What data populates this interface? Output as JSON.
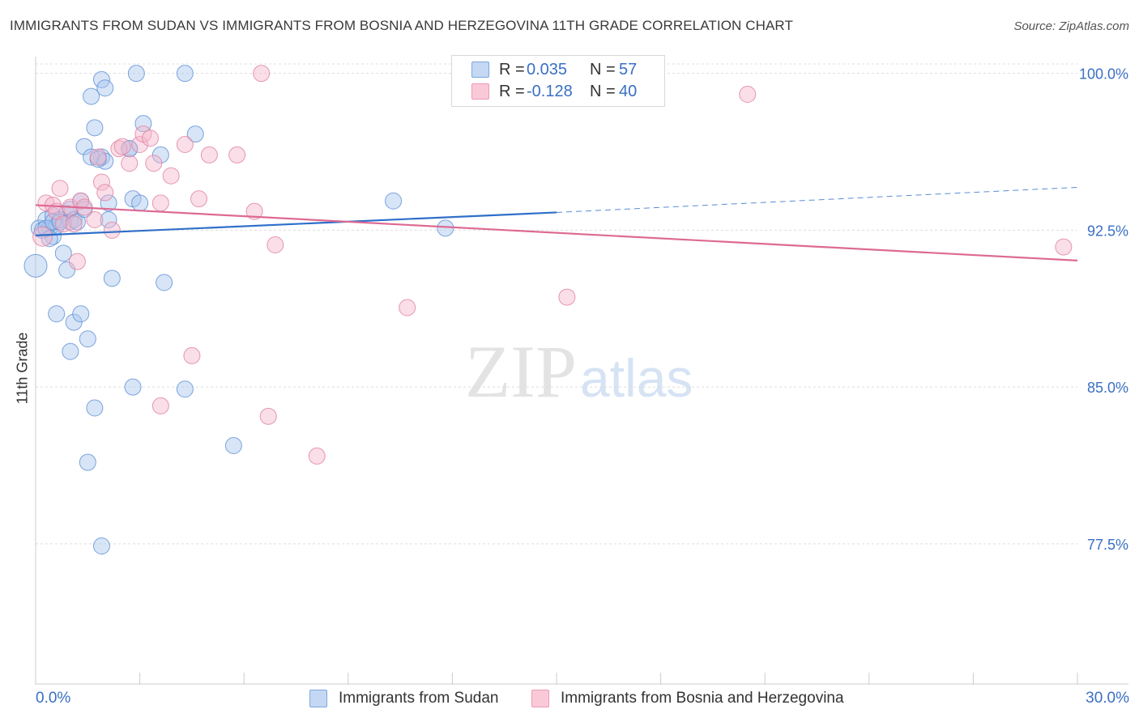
{
  "title": "IMMIGRANTS FROM SUDAN VS IMMIGRANTS FROM BOSNIA AND HERZEGOVINA 11TH GRADE CORRELATION CHART",
  "source": "Source: ZipAtlas.com",
  "watermark": {
    "zip": "ZIP",
    "atlas": "atlas"
  },
  "legend": {
    "r_label": "R =",
    "n_label": "N =",
    "rows": [
      {
        "r": "0.035",
        "n": "57",
        "color": "#a9c6ee"
      },
      {
        "r": "-0.128",
        "n": "40",
        "color": "#f5b6cb"
      }
    ]
  },
  "chart_data": {
    "type": "scatter",
    "title": "IMMIGRANTS FROM SUDAN VS IMMIGRANTS FROM BOSNIA AND HERZEGOVINA 11TH GRADE CORRELATION CHART",
    "xlabel": "",
    "ylabel": "11th Grade",
    "xlim": [
      0,
      30
    ],
    "ylim": [
      70.8,
      100.8
    ],
    "x_tick_labels": [
      "0.0%",
      "30.0%"
    ],
    "y_ticks": [
      77.5,
      85.0,
      92.5,
      100.0
    ],
    "y_tick_labels": [
      "77.5%",
      "85.0%",
      "92.5%",
      "100.0%"
    ],
    "grid": true,
    "legend_position": "bottom",
    "series": [
      {
        "name": "Immigrants from Sudan",
        "color": "#a9c6ee",
        "stroke": "#5b8fd6",
        "trend": {
          "x0": 0,
          "y0": 92.25,
          "x1": 15,
          "y1": 93.35,
          "dashed_to_x": 30,
          "dashed_to_y": 94.55,
          "color": "#2f6fc9"
        },
        "points": [
          [
            0.1,
            92.6
          ],
          [
            0.3,
            93.0
          ],
          [
            0.4,
            92.6
          ],
          [
            0.5,
            92.2
          ],
          [
            0.5,
            93.2
          ],
          [
            0.6,
            92.7
          ],
          [
            0.7,
            93.0
          ],
          [
            0.8,
            91.4
          ],
          [
            0.9,
            93.3
          ],
          [
            1.0,
            92.9
          ],
          [
            1.0,
            93.5
          ],
          [
            1.1,
            93.0
          ],
          [
            1.2,
            92.9
          ],
          [
            1.3,
            93.9
          ],
          [
            1.4,
            93.5
          ],
          [
            0.9,
            90.6
          ],
          [
            0.6,
            88.5
          ],
          [
            1.1,
            88.1
          ],
          [
            1.3,
            88.5
          ],
          [
            1.5,
            87.3
          ],
          [
            1.0,
            86.7
          ],
          [
            1.7,
            84.0
          ],
          [
            1.5,
            81.4
          ],
          [
            1.9,
            77.4
          ],
          [
            1.7,
            97.4
          ],
          [
            1.9,
            99.7
          ],
          [
            2.0,
            99.3
          ],
          [
            1.6,
            98.9
          ],
          [
            1.4,
            96.5
          ],
          [
            1.9,
            96.0
          ],
          [
            1.6,
            96.0
          ],
          [
            2.0,
            95.8
          ],
          [
            2.1,
            93.0
          ],
          [
            2.1,
            93.8
          ],
          [
            2.2,
            90.2
          ],
          [
            2.7,
            96.4
          ],
          [
            2.7,
            96.4
          ],
          [
            2.8,
            94.0
          ],
          [
            3.0,
            93.8
          ],
          [
            3.1,
            97.6
          ],
          [
            2.9,
            100.0
          ],
          [
            3.6,
            96.1
          ],
          [
            3.7,
            90.0
          ],
          [
            2.8,
            85.0
          ],
          [
            4.3,
            84.9
          ],
          [
            4.3,
            100.0
          ],
          [
            4.6,
            97.1
          ],
          [
            5.7,
            82.2
          ],
          [
            10.3,
            93.9
          ],
          [
            11.8,
            92.6
          ],
          [
            0.0,
            90.8
          ],
          [
            0.2,
            92.5
          ],
          [
            0.3,
            92.6
          ],
          [
            0.4,
            92.1
          ],
          [
            0.5,
            92.9
          ],
          [
            0.7,
            92.9
          ],
          [
            1.8,
            95.9
          ]
        ],
        "sizes": [
          10,
          10,
          10,
          10,
          10,
          10,
          10,
          10,
          10,
          10,
          10,
          10,
          10,
          10,
          10,
          10,
          10,
          10,
          10,
          10,
          10,
          10,
          10,
          10,
          10,
          10,
          10,
          10,
          10,
          10,
          10,
          10,
          10,
          10,
          10,
          10,
          10,
          10,
          10,
          10,
          10,
          10,
          10,
          10,
          10,
          10,
          10,
          10,
          10,
          10,
          14,
          10,
          10,
          10,
          10,
          10,
          10
        ]
      },
      {
        "name": "Immigrants from Bosnia and Herzegovina",
        "color": "#f5b6cb",
        "stroke": "#e07f9f",
        "trend": {
          "x0": 0,
          "y0": 93.7,
          "x1": 30,
          "y1": 91.05,
          "color": "#dd6a93"
        },
        "points": [
          [
            0.2,
            92.2
          ],
          [
            0.3,
            93.8
          ],
          [
            0.5,
            93.7
          ],
          [
            0.6,
            93.4
          ],
          [
            0.7,
            94.5
          ],
          [
            0.8,
            92.8
          ],
          [
            1.0,
            93.6
          ],
          [
            1.1,
            92.8
          ],
          [
            1.2,
            91.0
          ],
          [
            1.3,
            93.9
          ],
          [
            1.4,
            93.6
          ],
          [
            1.7,
            93.0
          ],
          [
            1.8,
            96.0
          ],
          [
            1.9,
            94.8
          ],
          [
            2.0,
            94.3
          ],
          [
            2.2,
            92.5
          ],
          [
            2.4,
            96.4
          ],
          [
            2.5,
            96.5
          ],
          [
            2.7,
            95.7
          ],
          [
            3.0,
            96.6
          ],
          [
            3.1,
            97.1
          ],
          [
            3.3,
            96.9
          ],
          [
            3.4,
            95.7
          ],
          [
            3.6,
            93.8
          ],
          [
            3.9,
            95.1
          ],
          [
            4.3,
            96.6
          ],
          [
            4.7,
            94.0
          ],
          [
            5.0,
            96.1
          ],
          [
            5.8,
            96.1
          ],
          [
            6.3,
            93.4
          ],
          [
            6.5,
            100.0
          ],
          [
            6.9,
            91.8
          ],
          [
            3.6,
            84.1
          ],
          [
            4.5,
            86.5
          ],
          [
            6.7,
            83.6
          ],
          [
            8.1,
            81.7
          ],
          [
            10.7,
            88.8
          ],
          [
            15.3,
            89.3
          ],
          [
            20.5,
            99.0
          ],
          [
            29.6,
            91.7
          ]
        ],
        "sizes": [
          12,
          10,
          10,
          10,
          10,
          10,
          10,
          10,
          10,
          10,
          10,
          10,
          10,
          10,
          10,
          10,
          10,
          10,
          10,
          10,
          10,
          10,
          10,
          10,
          10,
          10,
          10,
          10,
          10,
          10,
          10,
          10,
          10,
          10,
          10,
          10,
          10,
          10,
          10,
          10
        ]
      }
    ]
  }
}
